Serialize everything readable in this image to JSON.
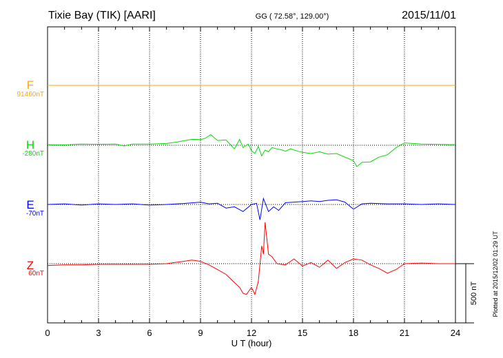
{
  "header": {
    "station": "Tixie Bay (TIK)  [AARI]",
    "coords": "GG ( 72.58°, 129.00°)",
    "date": "2015/11/01"
  },
  "footer": {
    "plotted": "Plotted at 2015/12/02 01:29 UT"
  },
  "scale_bar_label": "500 nT",
  "chart_data": {
    "type": "line",
    "xlabel": "U T (hour)",
    "xlim": [
      0,
      24
    ],
    "xticks": [
      "0",
      "3",
      "6",
      "9",
      "12",
      "15",
      "18",
      "21",
      "24"
    ],
    "grid": true,
    "scale_bar_nT": 500,
    "series": [
      {
        "name": "F",
        "baseline_label": "91460nT",
        "color": "#ffa500",
        "x": [
          0,
          6,
          12,
          18,
          24
        ],
        "y": [
          0,
          0,
          0,
          0,
          0
        ]
      },
      {
        "name": "H",
        "baseline_label": "-280nT",
        "color": "#00dd00",
        "x": [
          0,
          1,
          2,
          3,
          4,
          4.5,
          5,
          6,
          7,
          7.5,
          8,
          8.5,
          9,
          9.3,
          9.6,
          10,
          10.5,
          11,
          11.3,
          11.5,
          11.8,
          12,
          12.2,
          12.4,
          12.6,
          12.8,
          13,
          13.2,
          13.5,
          13.8,
          14,
          14.3,
          14.6,
          15,
          15.5,
          16,
          16.5,
          17,
          17.5,
          18,
          18.2,
          18.5,
          19,
          19.5,
          20,
          20.5,
          21,
          21.5,
          22,
          23,
          24
        ],
        "y": [
          5,
          3,
          10,
          8,
          10,
          -5,
          10,
          10,
          15,
          25,
          38,
          50,
          48,
          60,
          90,
          40,
          45,
          -30,
          50,
          -20,
          10,
          -45,
          -70,
          -10,
          -90,
          -40,
          -55,
          -20,
          -30,
          -40,
          -50,
          -30,
          -45,
          -60,
          -70,
          -55,
          -75,
          -70,
          -100,
          -130,
          -180,
          -145,
          -140,
          -100,
          -80,
          -20,
          20,
          15,
          10,
          7,
          5
        ]
      },
      {
        "name": "E",
        "baseline_label": "-70nT",
        "color": "#0000ff",
        "x": [
          0,
          1,
          2,
          3,
          4,
          5,
          6,
          7,
          8,
          9,
          9.5,
          10,
          10.5,
          11,
          11.5,
          12,
          12.3,
          12.5,
          12.7,
          13,
          13.3,
          13.6,
          14,
          14.5,
          15,
          15.5,
          16,
          16.5,
          17,
          17.5,
          18,
          18.5,
          19,
          20,
          21,
          22,
          23,
          24
        ],
        "y": [
          0,
          5,
          -5,
          5,
          0,
          5,
          -5,
          0,
          8,
          20,
          5,
          10,
          -30,
          -20,
          -60,
          0,
          10,
          -130,
          50,
          -60,
          -20,
          -50,
          15,
          20,
          25,
          30,
          25,
          35,
          40,
          20,
          -40,
          5,
          10,
          5,
          5,
          0,
          5,
          0
        ]
      },
      {
        "name": "Z",
        "baseline_label": "60nT",
        "color": "#ff0000",
        "x": [
          0,
          1,
          2,
          3,
          4,
          5,
          6,
          7,
          8,
          8.5,
          9,
          9.5,
          10,
          10.5,
          11,
          11.3,
          11.5,
          11.7,
          12,
          12.2,
          12.4,
          12.6,
          12.7,
          12.8,
          13,
          13.2,
          13.5,
          14,
          14.5,
          15,
          15.5,
          16,
          16.5,
          17,
          17.5,
          18,
          18.5,
          19,
          19.5,
          20,
          20.5,
          21,
          22,
          23,
          24
        ],
        "y": [
          -15,
          -10,
          -10,
          -5,
          -5,
          -5,
          -5,
          0,
          20,
          30,
          20,
          -10,
          -50,
          -90,
          -160,
          -200,
          -250,
          -260,
          -200,
          -260,
          -150,
          150,
          80,
          350,
          80,
          60,
          0,
          -10,
          40,
          -20,
          10,
          -30,
          30,
          -40,
          10,
          40,
          30,
          -10,
          -40,
          -80,
          -50,
          0,
          5,
          0,
          0
        ]
      }
    ]
  }
}
